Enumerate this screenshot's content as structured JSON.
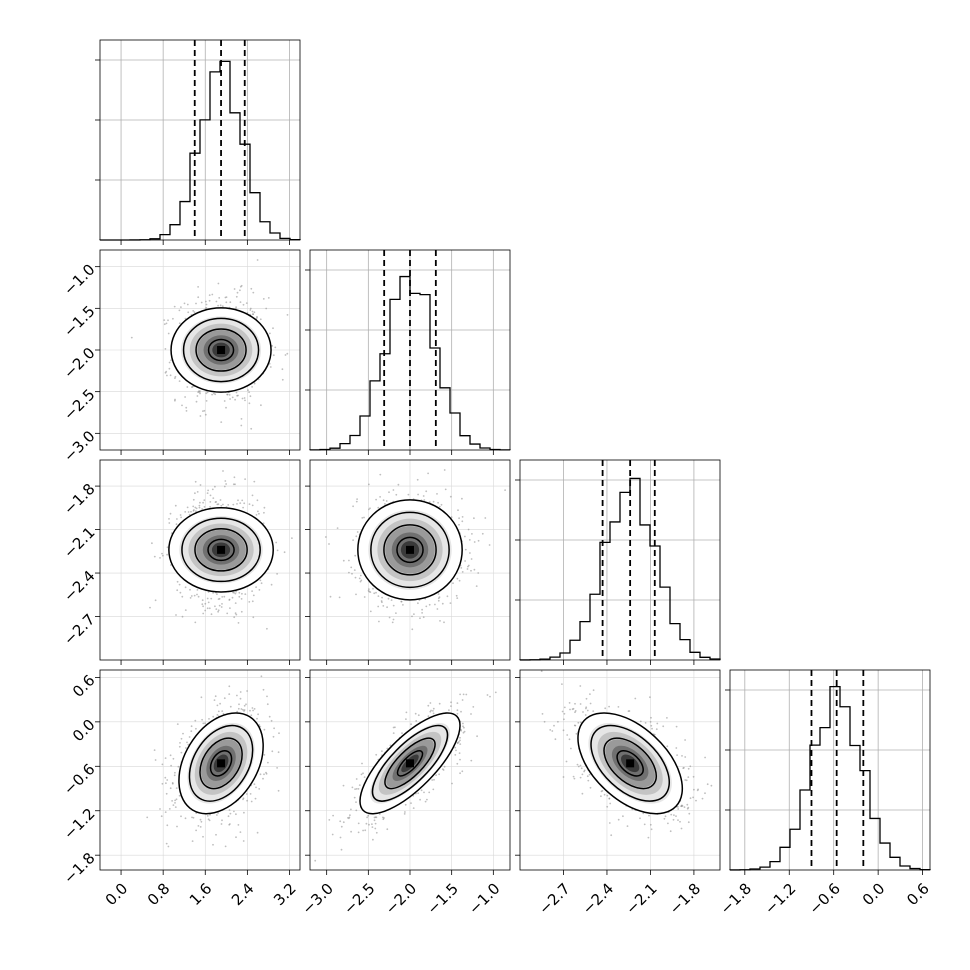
{
  "chart_data": {
    "type": "corner",
    "parameters": [
      {
        "range": [
          -0.4,
          3.4
        ],
        "ticks": [
          0.0,
          0.8,
          1.6,
          2.4,
          3.2
        ],
        "tick_labels": [
          "0.0",
          "0.8",
          "1.6",
          "2.4",
          "3.2"
        ],
        "quantiles": [
          1.4,
          1.9,
          2.35
        ],
        "median": 1.9,
        "sigma": 0.4
      },
      {
        "range": [
          -3.2,
          -0.8
        ],
        "ticks": [
          -3.0,
          -2.5,
          -2.0,
          -1.5,
          -1.0
        ],
        "tick_labels": [
          "−3.0",
          "−2.5",
          "−2.0",
          "−1.5",
          "−1.0"
        ],
        "quantiles": [
          -2.31,
          -2.0,
          -1.69
        ],
        "median": -2.0,
        "sigma": 0.3
      },
      {
        "range": [
          -3.0,
          -1.62
        ],
        "ticks": [
          -2.7,
          -2.4,
          -2.1,
          -1.8
        ],
        "tick_labels": [
          "−2.7",
          "−2.4",
          "−2.1",
          "−1.8"
        ],
        "quantiles": [
          -2.43,
          -2.24,
          -2.07
        ],
        "median": -2.24,
        "sigma": 0.18
      },
      {
        "range": [
          -2.0,
          0.7
        ],
        "ticks": [
          -1.8,
          -1.2,
          -0.6,
          0.0,
          0.6
        ],
        "tick_labels": [
          "−1.8",
          "−1.2",
          "−0.6",
          "0.0",
          "0.6"
        ],
        "quantiles": [
          -0.9,
          -0.56,
          -0.2
        ],
        "median": -0.56,
        "sigma": 0.34
      }
    ],
    "correlations": [
      {
        "row": 1,
        "col": 0,
        "rho": 0.0
      },
      {
        "row": 2,
        "col": 0,
        "rho": 0.0
      },
      {
        "row": 2,
        "col": 1,
        "rho": 0.0
      },
      {
        "row": 3,
        "col": 0,
        "rho": 0.35
      },
      {
        "row": 3,
        "col": 1,
        "rho": 0.75
      },
      {
        "row": 3,
        "col": 2,
        "rho": -0.5
      }
    ],
    "contour_levels": [
      0.5,
      1.0,
      1.5,
      2.0
    ],
    "histogram": {
      "bins": 20,
      "style": "step"
    },
    "grid": true,
    "quantile_line_style": "dashed"
  }
}
